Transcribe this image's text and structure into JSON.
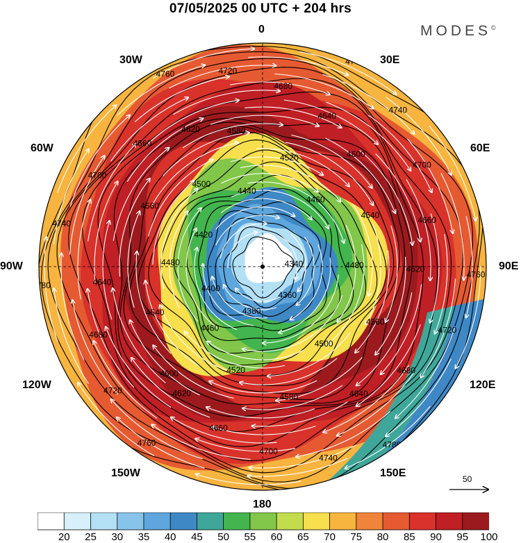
{
  "title": "07/05/2025  00 UTC  + 204 hrs",
  "brand": "MODES",
  "brand_mark": "©",
  "longitude_labels": {
    "n": "0",
    "e30": "30E",
    "e60": "60E",
    "e90": "90E",
    "e120": "120E",
    "e150": "150E",
    "s": "180",
    "w150": "150W",
    "w120": "120W",
    "w90": "90W",
    "w60": "60W",
    "w30": "30W"
  },
  "contour_labels": [
    "4340",
    "4360",
    "4380",
    "4400",
    "4420",
    "4440",
    "4460",
    "4480",
    "4500",
    "4520",
    "4540",
    "4560",
    "4580",
    "4600",
    "4620",
    "4640",
    "4660",
    "4680",
    "4700",
    "4720",
    "4740",
    "4760",
    "4780"
  ],
  "reference_vector": {
    "value": "50"
  },
  "colorbar": {
    "ticks": [
      "20",
      "25",
      "30",
      "35",
      "40",
      "45",
      "50",
      "55",
      "60",
      "65",
      "70",
      "75",
      "80",
      "85",
      "90",
      "95",
      "100"
    ],
    "colors": [
      "#ffffff",
      "#d7f0fb",
      "#b3e0f5",
      "#88c4ea",
      "#5ea6dd",
      "#3f88c6",
      "#3fa79a",
      "#43b54e",
      "#82c64a",
      "#c3dc4e",
      "#f7df4d",
      "#f7b43f",
      "#f0843a",
      "#e65a32",
      "#d8322b",
      "#bf1f25",
      "#9c1a1e"
    ]
  }
}
